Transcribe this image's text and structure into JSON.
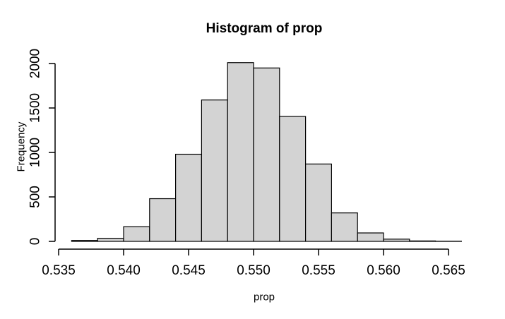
{
  "chart_data": {
    "type": "bar",
    "subtype": "histogram",
    "title": "Histogram of prop",
    "xlabel": "prop",
    "ylabel": "Frequency",
    "bin_edges": [
      0.536,
      0.538,
      0.54,
      0.542,
      0.544,
      0.546,
      0.548,
      0.55,
      0.552,
      0.554,
      0.556,
      0.558,
      0.56,
      0.562,
      0.564,
      0.566
    ],
    "counts": [
      10,
      35,
      165,
      480,
      980,
      1590,
      2010,
      1950,
      1405,
      870,
      320,
      95,
      25,
      5,
      2
    ],
    "xlim": [
      0.535,
      0.565
    ],
    "ylim": [
      0,
      2000
    ],
    "x_tick_values": [
      0.535,
      0.54,
      0.545,
      0.55,
      0.555,
      0.56,
      0.565
    ],
    "x_tick_labels": [
      "0.535",
      "0.540",
      "0.545",
      "0.550",
      "0.555",
      "0.560",
      "0.565"
    ],
    "y_tick_values": [
      0,
      500,
      1000,
      1500,
      2000
    ],
    "y_tick_labels": [
      "0",
      "500",
      "1000",
      "1500",
      "2000"
    ],
    "grid": false,
    "legend_position": "none",
    "colors": {
      "bar_fill": "#d3d3d3",
      "bar_stroke": "#000000",
      "axis": "#000000",
      "text": "#000000",
      "background": "#ffffff"
    }
  }
}
